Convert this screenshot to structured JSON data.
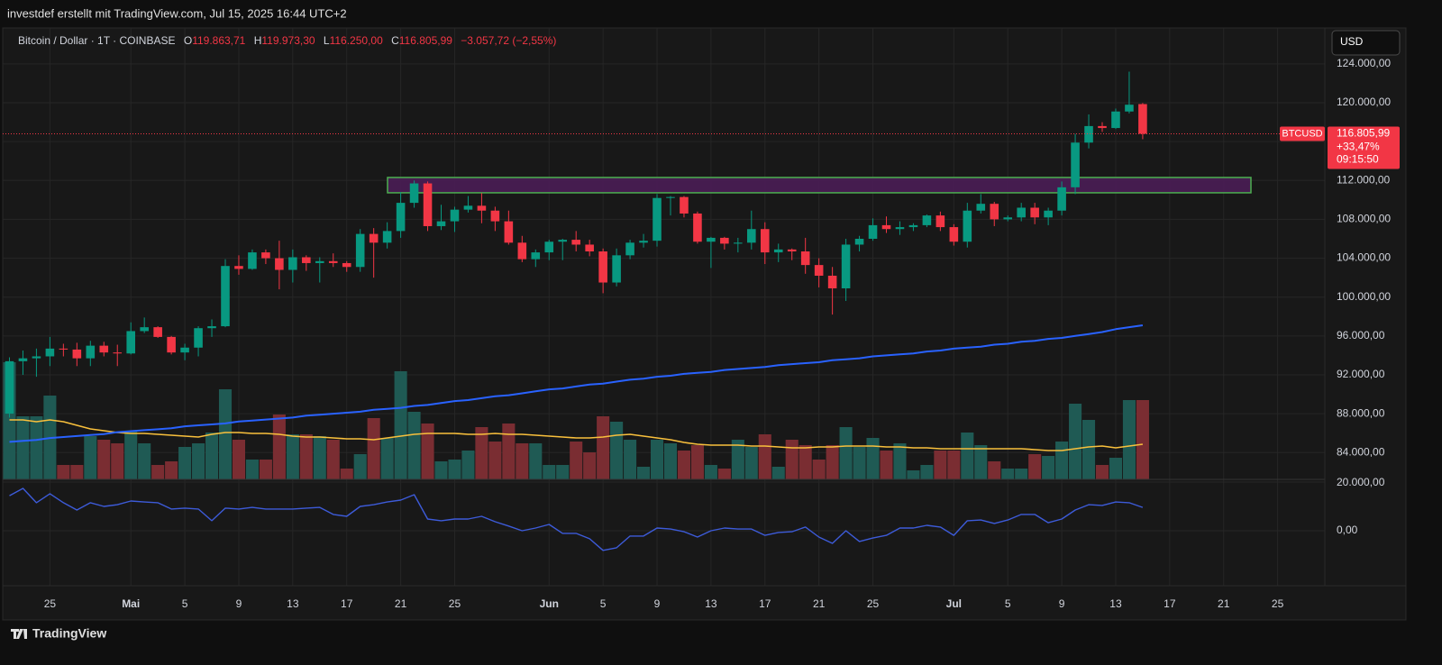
{
  "header": {
    "attribution": "investdef erstellt mit TradingView.com, Jul 15, 2025 16:44 UTC+2",
    "symbol": "Bitcoin / Dollar · 1T · COINBASE",
    "open_label": "O",
    "open": "119.863,71",
    "high_label": "H",
    "high": "119.973,30",
    "low_label": "L",
    "low": "116.250,00",
    "close_label": "C",
    "close": "116.805,99",
    "change": "−3.057,72 (−2,55%)",
    "currency": "USD"
  },
  "price_tag": {
    "symbol": "BTCUSD",
    "price": "116.805,99",
    "change": "+33,47%",
    "countdown": "09:15:50"
  },
  "footer": {
    "brand": "TradingView"
  },
  "chart_data": {
    "type": "candlestick",
    "categories": [
      null,
      null,
      null,
      "25",
      null,
      null,
      null,
      null,
      null,
      "Mai",
      null,
      null,
      null,
      "5",
      null,
      null,
      null,
      "9",
      null,
      null,
      null,
      "13",
      null,
      null,
      null,
      "17",
      null,
      null,
      null,
      "21",
      null,
      null,
      null,
      "25",
      null,
      null,
      null,
      null,
      null,
      null,
      "Jun",
      null,
      null,
      null,
      "5",
      null,
      null,
      null,
      "9",
      null,
      null,
      null,
      "13",
      null,
      null,
      null,
      "17",
      null,
      null,
      null,
      "21",
      null,
      null,
      null,
      "25",
      null,
      null,
      null,
      null,
      null,
      "Jul",
      null,
      null,
      null,
      "5",
      null,
      null,
      null,
      "9",
      null,
      null,
      null,
      "13",
      null,
      null,
      null,
      "17",
      null,
      null,
      null,
      "21",
      null,
      null,
      null,
      "25",
      null,
      null,
      null
    ],
    "open": [
      88000,
      93400,
      93700,
      93900,
      94700,
      94600,
      93700,
      95000,
      94300,
      94200,
      96500,
      96900,
      95900,
      94300,
      94800,
      96800,
      97000,
      103200,
      102900,
      104600,
      104000,
      102800,
      104100,
      103500,
      103700,
      103500,
      103100,
      106500,
      105600,
      106800,
      109700,
      111700,
      107300,
      107800,
      109000,
      109400,
      108900,
      107800,
      105600,
      103900,
      104600,
      105700,
      105900,
      105400,
      104700,
      101500,
      104300,
      105600,
      105800,
      110200,
      110300,
      108600,
      105700,
      106100,
      105500,
      105600,
      107000,
      104600,
      104900,
      104700,
      103300,
      102200,
      100900,
      105400,
      106000,
      107400,
      107000,
      107200,
      107400,
      108400,
      107200,
      105700,
      108900,
      109600,
      108000,
      108200,
      109200,
      108200,
      108900,
      111300,
      115900,
      117600,
      117400,
      119100,
      119863.71,
      null,
      null,
      null,
      null,
      null,
      null,
      null,
      null,
      null,
      null,
      null,
      null,
      null
    ],
    "high": [
      93800,
      94500,
      94700,
      95900,
      95200,
      95300,
      95500,
      95400,
      95100,
      97400,
      97900,
      97000,
      96000,
      95200,
      97000,
      97700,
      103900,
      104300,
      104900,
      104900,
      105800,
      104900,
      104300,
      104100,
      104500,
      103700,
      107000,
      107100,
      107700,
      110800,
      112000,
      111900,
      109500,
      109300,
      110400,
      110700,
      109300,
      108900,
      106300,
      104900,
      105900,
      106000,
      106800,
      105900,
      105000,
      105000,
      105900,
      106500,
      110600,
      110400,
      110400,
      108800,
      106200,
      106200,
      106100,
      108900,
      107700,
      105500,
      105000,
      106100,
      104000,
      103100,
      106000,
      106300,
      108100,
      108300,
      107800,
      107600,
      108500,
      108800,
      107500,
      109700,
      110600,
      109800,
      108400,
      109700,
      109700,
      109200,
      111900,
      116800,
      118800,
      118000,
      119400,
      123200,
      119973.3,
      null,
      null,
      null,
      null,
      null,
      null,
      null,
      null,
      null,
      null,
      null,
      null,
      null
    ],
    "low": [
      87600,
      92000,
      91800,
      92900,
      93900,
      92900,
      92900,
      93900,
      92900,
      94100,
      96300,
      95800,
      94100,
      93500,
      93900,
      95900,
      96900,
      102300,
      102800,
      103400,
      100800,
      101500,
      102700,
      101500,
      103100,
      102600,
      102600,
      102000,
      105000,
      106100,
      109200,
      106800,
      106900,
      106700,
      108700,
      107600,
      106800,
      105400,
      103600,
      103100,
      103800,
      103800,
      104700,
      104200,
      100400,
      101100,
      103900,
      105100,
      105200,
      108400,
      108200,
      105500,
      103000,
      104900,
      104600,
      104900,
      103400,
      103600,
      103800,
      102400,
      101000,
      98200,
      99600,
      104700,
      105800,
      106600,
      106400,
      106800,
      107200,
      106800,
      105300,
      105100,
      108600,
      107300,
      107800,
      107800,
      107500,
      107400,
      108400,
      110600,
      115300,
      117000,
      117300,
      118900,
      116250,
      null,
      null,
      null,
      null,
      null,
      null,
      null,
      null,
      null,
      null,
      null,
      null,
      null
    ],
    "close": [
      93400,
      93700,
      93900,
      94700,
      94600,
      93700,
      95000,
      94300,
      94200,
      96500,
      96900,
      95900,
      94300,
      94800,
      96800,
      97000,
      103200,
      102900,
      104600,
      104000,
      102800,
      104100,
      103500,
      103700,
      103500,
      103100,
      106500,
      105600,
      106800,
      109700,
      111700,
      107300,
      107800,
      109000,
      109400,
      108900,
      107800,
      105600,
      103900,
      104600,
      105700,
      105900,
      105400,
      104700,
      101500,
      104300,
      105600,
      105800,
      110200,
      110300,
      108600,
      105700,
      106100,
      105500,
      105600,
      107000,
      104600,
      104900,
      104700,
      103300,
      102200,
      100900,
      105400,
      106000,
      107400,
      107000,
      107200,
      107400,
      108400,
      107200,
      105700,
      108900,
      109600,
      108000,
      108200,
      109200,
      108200,
      108900,
      111300,
      115900,
      117600,
      117400,
      119100,
      119800,
      116805.99,
      null,
      null,
      null,
      null,
      null,
      null,
      null,
      null,
      null,
      null,
      null,
      null,
      null
    ],
    "up_color": "#089981",
    "down_color": "#f23645",
    "ylim": [
      81240,
      127700
    ],
    "yticks": [
      {
        "value": 84000,
        "label": "84.000,00"
      },
      {
        "value": 88000,
        "label": "88.000,00"
      },
      {
        "value": 92000,
        "label": "92.000,00"
      },
      {
        "value": 96000,
        "label": "96.000,00"
      },
      {
        "value": 100000,
        "label": "100.000,00"
      },
      {
        "value": 104000,
        "label": "104.000,00"
      },
      {
        "value": 108000,
        "label": "108.000,00"
      },
      {
        "value": 112000,
        "label": "112.000,00"
      },
      {
        "value": 116000,
        "label": "116.000,00"
      },
      {
        "value": 120000,
        "label": "120.000,00"
      },
      {
        "value": 124000,
        "label": "124.000,00"
      }
    ],
    "grid": true,
    "last_price": 116805.99,
    "zone": {
      "low": 110735,
      "high": 112310,
      "color": "#4a1d55",
      "border": "#4caf50"
    },
    "moving_average": {
      "color": "#2962ff",
      "values": [
        85100,
        85200,
        85300,
        85500,
        85600,
        85700,
        85800,
        85900,
        86100,
        86200,
        86300,
        86400,
        86500,
        86700,
        86800,
        86900,
        87000,
        87200,
        87300,
        87400,
        87500,
        87600,
        87800,
        87900,
        88000,
        88100,
        88200,
        88400,
        88500,
        88600,
        88800,
        88900,
        89100,
        89300,
        89400,
        89600,
        89800,
        89900,
        90100,
        90300,
        90500,
        90600,
        90800,
        91000,
        91100,
        91300,
        91500,
        91600,
        91800,
        91900,
        92100,
        92200,
        92300,
        92500,
        92600,
        92700,
        92800,
        93000,
        93100,
        93200,
        93300,
        93500,
        93600,
        93700,
        93900,
        94000,
        94100,
        94200,
        94400,
        94500,
        94700,
        94800,
        94900,
        95100,
        95200,
        95400,
        95500,
        95700,
        95800,
        96000,
        96200,
        96400,
        96700,
        96900,
        97100,
        null,
        null,
        null,
        null,
        null,
        null,
        null,
        null,
        null,
        null,
        null,
        null,
        null
      ]
    },
    "volume": {
      "ylim": [
        0,
        130
      ],
      "up_color": "#1f5a54",
      "down_color": "#7a2d32",
      "values": [
        130,
        70,
        70,
        93,
        16,
        16,
        48,
        44,
        40,
        54,
        40,
        16,
        20,
        36,
        40,
        52,
        100,
        44,
        22,
        22,
        72,
        50,
        50,
        48,
        44,
        12,
        28,
        68,
        46,
        120,
        75,
        62,
        20,
        22,
        32,
        58,
        42,
        62,
        40,
        40,
        16,
        16,
        42,
        30,
        70,
        64,
        44,
        14,
        44,
        40,
        32,
        38,
        16,
        12,
        44,
        36,
        50,
        14,
        44,
        38,
        22,
        38,
        58,
        36,
        46,
        32,
        40,
        10,
        16,
        32,
        32,
        52,
        38,
        20,
        12,
        12,
        28,
        26,
        42,
        84,
        66,
        16,
        24,
        88,
        88,
        null,
        null,
        null,
        null,
        null,
        null,
        null,
        null,
        null,
        null,
        null,
        null,
        null
      ],
      "ma_color": "#f9c03c",
      "ma": [
        66,
        66,
        64,
        66,
        64,
        60,
        56,
        54,
        52,
        51,
        51,
        50,
        49,
        48,
        47,
        50,
        52,
        52,
        51,
        51,
        50,
        48,
        47,
        47,
        46,
        45,
        45,
        44,
        46,
        48,
        50,
        51,
        51,
        51,
        50,
        50,
        51,
        50,
        50,
        49,
        48,
        47,
        46,
        46,
        47,
        49,
        50,
        48,
        46,
        44,
        41,
        39,
        38,
        38,
        38,
        37,
        37,
        36,
        35,
        35,
        36,
        36,
        37,
        37,
        37,
        36,
        36,
        35,
        35,
        34,
        34,
        34,
        34,
        34,
        34,
        34,
        33,
        32,
        32,
        34,
        36,
        37,
        35,
        37,
        39,
        null,
        null,
        null,
        null,
        null,
        null,
        null,
        null,
        null,
        null,
        null,
        null,
        null
      ]
    },
    "oscillator": {
      "color": "#3d5bd9",
      "ylim": [
        -22600,
        21100
      ],
      "yticks": [
        {
          "value": 0,
          "label": "0,00"
        },
        {
          "value": 20000,
          "label": "20.000,00"
        }
      ],
      "values": [
        14400,
        17400,
        11500,
        15200,
        11500,
        8500,
        11500,
        10000,
        10700,
        12200,
        11800,
        11500,
        8900,
        9300,
        8900,
        4100,
        9300,
        8900,
        9600,
        8900,
        8900,
        8900,
        9300,
        9600,
        6700,
        5900,
        10000,
        10700,
        11800,
        12600,
        14800,
        4800,
        4100,
        4800,
        4800,
        5900,
        3700,
        1900,
        0,
        1100,
        2600,
        -1100,
        -1100,
        -3300,
        -8100,
        -7000,
        -2200,
        -2200,
        1100,
        700,
        -400,
        -2600,
        0,
        1100,
        700,
        700,
        -1900,
        -700,
        -400,
        1500,
        -2600,
        -5200,
        0,
        -4400,
        -3000,
        -1900,
        1100,
        1100,
        2200,
        1500,
        -1900,
        4100,
        4400,
        3000,
        4400,
        6700,
        6700,
        3300,
        4800,
        8500,
        10700,
        10400,
        11800,
        11500,
        9600,
        null,
        null,
        null,
        null,
        null,
        null,
        null,
        null,
        null,
        null,
        null,
        null,
        null
      ]
    }
  }
}
